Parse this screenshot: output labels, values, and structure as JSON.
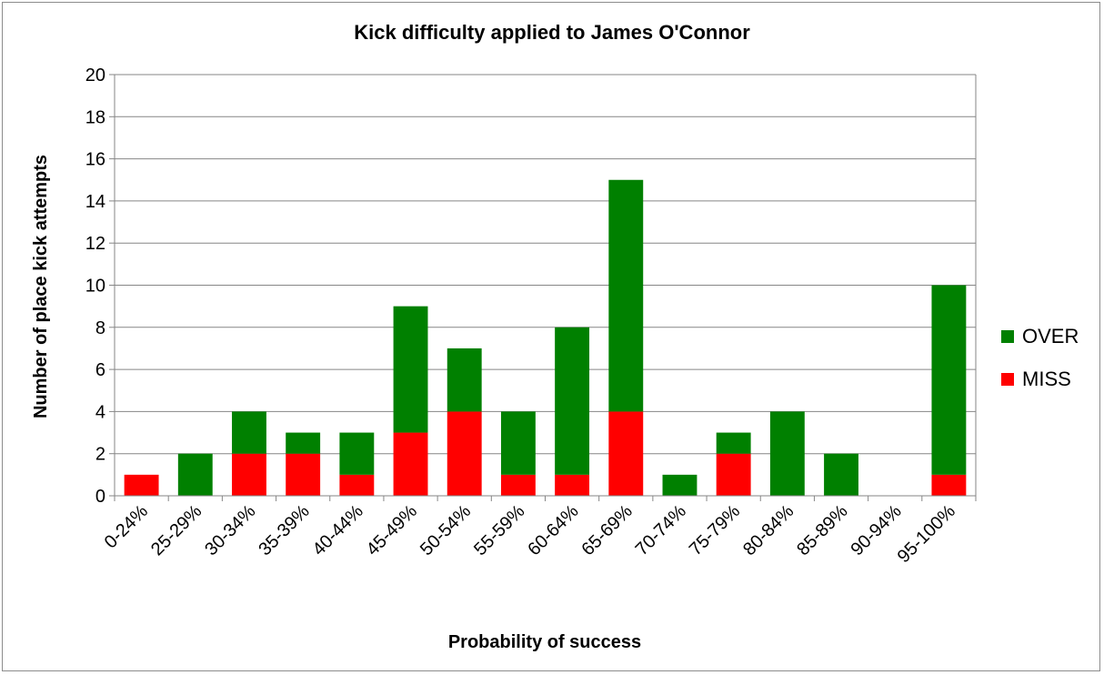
{
  "chart_data": {
    "type": "bar",
    "stacked": true,
    "title": "Kick difficulty applied to James O'Connor",
    "xlabel": "Probability of success",
    "ylabel": "Number of place kick attempts",
    "ylim": [
      0,
      20
    ],
    "yticks": [
      0,
      2,
      4,
      6,
      8,
      10,
      12,
      14,
      16,
      18,
      20
    ],
    "grid": true,
    "legend_position": "right",
    "categories": [
      "0-24%",
      "25-29%",
      "30-34%",
      "35-39%",
      "40-44%",
      "45-49%",
      "50-54%",
      "55-59%",
      "60-64%",
      "65-69%",
      "70-74%",
      "75-79%",
      "80-84%",
      "85-89%",
      "90-94%",
      "95-100%"
    ],
    "series": [
      {
        "name": "MISS",
        "color": "#ff0000",
        "values": [
          1,
          0,
          2,
          2,
          1,
          3,
          4,
          1,
          1,
          4,
          0,
          2,
          0,
          0,
          0,
          1
        ]
      },
      {
        "name": "OVER",
        "color": "#008000",
        "values": [
          0,
          2,
          2,
          1,
          2,
          6,
          3,
          3,
          7,
          11,
          1,
          1,
          4,
          2,
          0,
          9
        ]
      }
    ]
  }
}
